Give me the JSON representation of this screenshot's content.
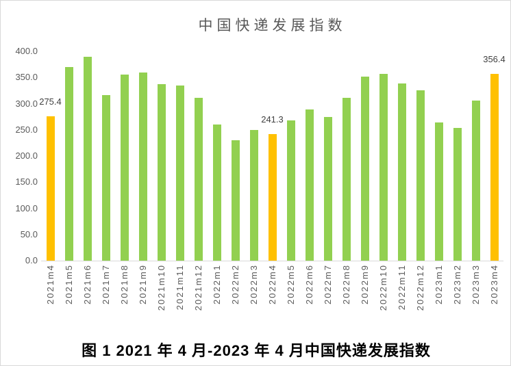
{
  "figure": {
    "caption": "图 1  2021 年 4 月-2023 年 4 月中国快递发展指数"
  },
  "chart_data": {
    "type": "bar",
    "title": "中国快递发展指数",
    "categories": [
      "2021m4",
      "2021m5",
      "2021m6",
      "2021m7",
      "2021m8",
      "2021m9",
      "2021m10",
      "2021m11",
      "2021m12",
      "2022m1",
      "2022m2",
      "2022m3",
      "2022m4",
      "2022m5",
      "2022m6",
      "2022m7",
      "2022m8",
      "2022m9",
      "2022m10",
      "2022m11",
      "2022m12",
      "2023m1",
      "2023m2",
      "2023m3",
      "2023m4"
    ],
    "values": [
      275.4,
      370,
      390,
      316,
      356,
      360,
      337,
      335,
      311,
      260,
      230,
      250,
      241.3,
      268,
      289,
      275,
      311,
      352,
      357,
      338,
      326,
      264,
      254,
      306,
      356.4
    ],
    "highlighted": [
      {
        "index": 0,
        "label": "275.4"
      },
      {
        "index": 12,
        "label": "241.3"
      },
      {
        "index": 24,
        "label": "356.4"
      }
    ],
    "yticks": [
      "400.0",
      "350.0",
      "300.0",
      "250.0",
      "200.0",
      "150.0",
      "100.0",
      "50.0",
      "0.0"
    ],
    "ylim": [
      0,
      400
    ],
    "ytick_step": 50,
    "xlabel": "",
    "ylabel": "",
    "grid": false,
    "legend": "none",
    "colors": {
      "bar": "#92D050",
      "highlight": "#FFC000",
      "axis_text": "#595959",
      "data_label": "#404040",
      "axis_line": "#D9D9D9"
    }
  }
}
